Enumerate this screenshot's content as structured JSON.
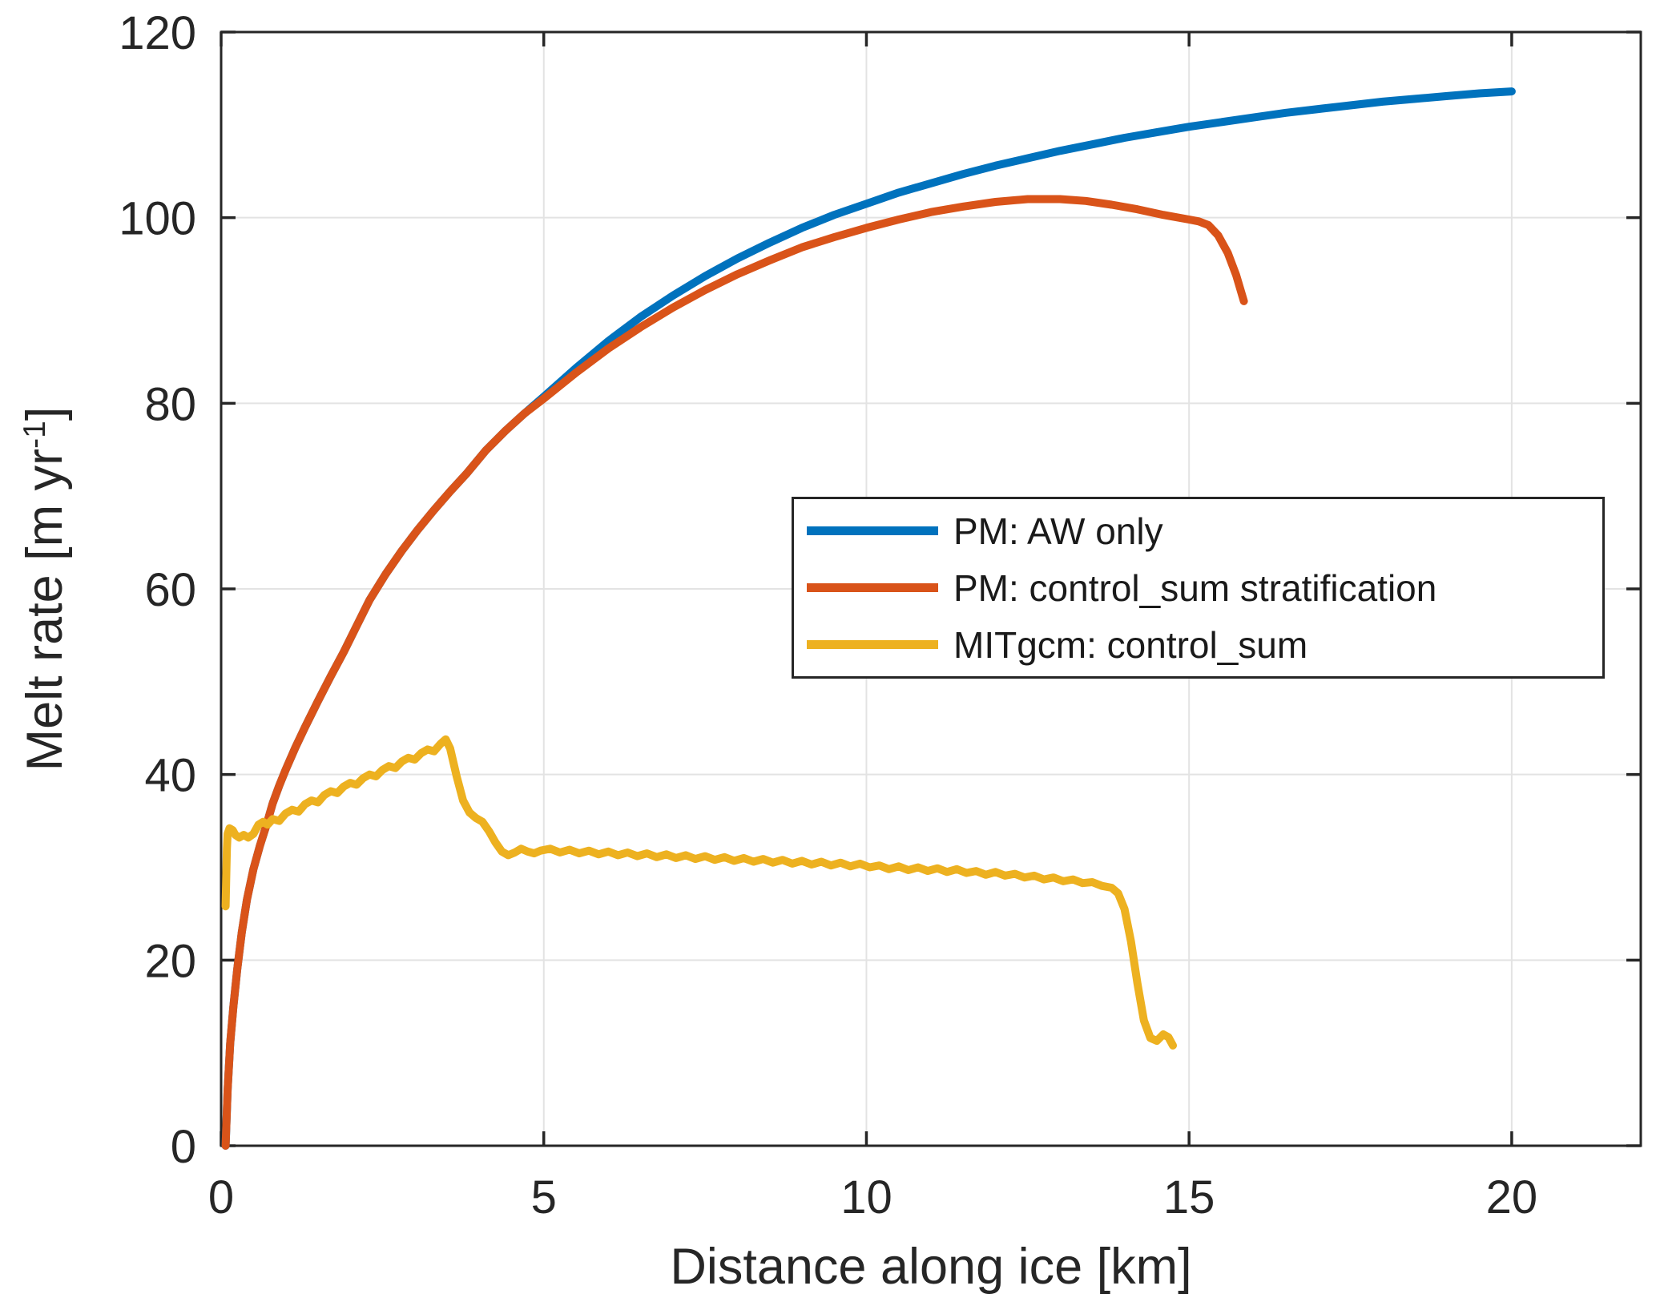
{
  "chart_data": {
    "type": "line",
    "title": "",
    "xlabel": "Distance along ice [km]",
    "ylabel": "Melt rate [m yr^-1]",
    "ylabel_parts": {
      "base": "Melt rate [m yr",
      "sup": "-1",
      "end": "]"
    },
    "xlim": [
      0,
      22
    ],
    "ylim": [
      0,
      120
    ],
    "xticks": [
      0,
      5,
      10,
      15,
      20
    ],
    "yticks": [
      0,
      20,
      40,
      60,
      80,
      100,
      120
    ],
    "grid": true,
    "legend_position": "middle-right",
    "colors": {
      "axis": "#262626",
      "grid": "#e3e3e3",
      "legend_border": "#262626",
      "legend_background": "#ffffff",
      "series_blue": "#0072BD",
      "series_orange": "#D95319",
      "series_yellow": "#EDB120"
    },
    "series": [
      {
        "name": "PM: AW only",
        "color": "#0072BD",
        "width": 10,
        "points": [
          [
            0.07,
            0
          ],
          [
            0.1,
            6
          ],
          [
            0.14,
            11
          ],
          [
            0.19,
            15
          ],
          [
            0.25,
            19
          ],
          [
            0.32,
            23
          ],
          [
            0.4,
            26.5
          ],
          [
            0.5,
            29.8
          ],
          [
            0.6,
            32.3
          ],
          [
            0.7,
            34.5
          ],
          [
            0.8,
            36.9
          ],
          [
            0.9,
            38.8
          ],
          [
            1.0,
            40.5
          ],
          [
            1.15,
            42.9
          ],
          [
            1.3,
            45.1
          ],
          [
            1.5,
            47.9
          ],
          [
            1.7,
            50.6
          ],
          [
            1.9,
            53.2
          ],
          [
            2.1,
            56.0
          ],
          [
            2.3,
            58.8
          ],
          [
            2.55,
            61.6
          ],
          [
            2.8,
            64.1
          ],
          [
            3.05,
            66.4
          ],
          [
            3.3,
            68.5
          ],
          [
            3.55,
            70.5
          ],
          [
            3.8,
            72.4
          ],
          [
            4.1,
            74.9
          ],
          [
            4.4,
            77.0
          ],
          [
            4.7,
            78.9
          ],
          [
            5.0,
            80.7
          ],
          [
            5.5,
            83.8
          ],
          [
            6.0,
            86.7
          ],
          [
            6.5,
            89.3
          ],
          [
            7.0,
            91.6
          ],
          [
            7.5,
            93.7
          ],
          [
            8.0,
            95.6
          ],
          [
            8.5,
            97.3
          ],
          [
            9.0,
            98.9
          ],
          [
            9.5,
            100.3
          ],
          [
            10.0,
            101.5
          ],
          [
            10.5,
            102.7
          ],
          [
            11.0,
            103.7
          ],
          [
            11.5,
            104.7
          ],
          [
            12.0,
            105.6
          ],
          [
            12.5,
            106.4
          ],
          [
            13.0,
            107.2
          ],
          [
            13.5,
            107.9
          ],
          [
            14.0,
            108.6
          ],
          [
            14.5,
            109.2
          ],
          [
            15.0,
            109.8
          ],
          [
            15.5,
            110.3
          ],
          [
            16.0,
            110.8
          ],
          [
            16.5,
            111.3
          ],
          [
            17.0,
            111.7
          ],
          [
            17.5,
            112.1
          ],
          [
            18.0,
            112.5
          ],
          [
            18.5,
            112.8
          ],
          [
            19.0,
            113.1
          ],
          [
            19.5,
            113.4
          ],
          [
            20.0,
            113.6
          ]
        ]
      },
      {
        "name": "PM: control_sum stratification",
        "color": "#D95319",
        "width": 10,
        "points": [
          [
            0.07,
            0
          ],
          [
            0.1,
            6
          ],
          [
            0.14,
            11
          ],
          [
            0.19,
            15
          ],
          [
            0.25,
            19
          ],
          [
            0.32,
            23
          ],
          [
            0.4,
            26.5
          ],
          [
            0.5,
            29.8
          ],
          [
            0.6,
            32.3
          ],
          [
            0.7,
            34.5
          ],
          [
            0.8,
            36.9
          ],
          [
            0.9,
            38.8
          ],
          [
            1.0,
            40.5
          ],
          [
            1.15,
            42.9
          ],
          [
            1.3,
            45.1
          ],
          [
            1.5,
            47.9
          ],
          [
            1.7,
            50.6
          ],
          [
            1.9,
            53.2
          ],
          [
            2.1,
            56.0
          ],
          [
            2.3,
            58.8
          ],
          [
            2.55,
            61.6
          ],
          [
            2.8,
            64.1
          ],
          [
            3.05,
            66.4
          ],
          [
            3.3,
            68.5
          ],
          [
            3.55,
            70.5
          ],
          [
            3.8,
            72.4
          ],
          [
            4.1,
            74.9
          ],
          [
            4.4,
            77.0
          ],
          [
            4.7,
            78.9
          ],
          [
            5.0,
            80.5
          ],
          [
            5.5,
            83.3
          ],
          [
            6.0,
            85.9
          ],
          [
            6.5,
            88.2
          ],
          [
            7.0,
            90.3
          ],
          [
            7.5,
            92.2
          ],
          [
            8.0,
            93.9
          ],
          [
            8.5,
            95.4
          ],
          [
            9.0,
            96.8
          ],
          [
            9.5,
            97.9
          ],
          [
            10.0,
            98.9
          ],
          [
            10.5,
            99.8
          ],
          [
            11.0,
            100.6
          ],
          [
            11.5,
            101.2
          ],
          [
            12.0,
            101.7
          ],
          [
            12.5,
            102.0
          ],
          [
            13.0,
            102.0
          ],
          [
            13.4,
            101.8
          ],
          [
            13.8,
            101.4
          ],
          [
            14.2,
            100.9
          ],
          [
            14.6,
            100.3
          ],
          [
            15.0,
            99.8
          ],
          [
            15.15,
            99.6
          ],
          [
            15.3,
            99.2
          ],
          [
            15.45,
            98.1
          ],
          [
            15.6,
            96.2
          ],
          [
            15.73,
            93.8
          ],
          [
            15.85,
            91.0
          ]
        ]
      },
      {
        "name": "MITgcm: control_sum",
        "color": "#EDB120",
        "width": 10,
        "points": [
          [
            0.07,
            25.8
          ],
          [
            0.08,
            29.0
          ],
          [
            0.09,
            32.0
          ],
          [
            0.1,
            33.6
          ],
          [
            0.13,
            34.2
          ],
          [
            0.18,
            34.0
          ],
          [
            0.22,
            33.5
          ],
          [
            0.28,
            33.2
          ],
          [
            0.35,
            33.5
          ],
          [
            0.42,
            33.2
          ],
          [
            0.5,
            33.6
          ],
          [
            0.58,
            34.6
          ],
          [
            0.65,
            34.9
          ],
          [
            0.72,
            34.6
          ],
          [
            0.8,
            35.2
          ],
          [
            0.9,
            35.0
          ],
          [
            1.0,
            35.8
          ],
          [
            1.1,
            36.2
          ],
          [
            1.2,
            36.0
          ],
          [
            1.3,
            36.8
          ],
          [
            1.4,
            37.2
          ],
          [
            1.5,
            37.0
          ],
          [
            1.6,
            37.8
          ],
          [
            1.7,
            38.2
          ],
          [
            1.8,
            38.0
          ],
          [
            1.9,
            38.7
          ],
          [
            2.0,
            39.1
          ],
          [
            2.1,
            38.9
          ],
          [
            2.2,
            39.6
          ],
          [
            2.3,
            40.0
          ],
          [
            2.4,
            39.8
          ],
          [
            2.5,
            40.5
          ],
          [
            2.6,
            40.9
          ],
          [
            2.7,
            40.7
          ],
          [
            2.8,
            41.4
          ],
          [
            2.9,
            41.8
          ],
          [
            3.0,
            41.6
          ],
          [
            3.1,
            42.3
          ],
          [
            3.2,
            42.7
          ],
          [
            3.3,
            42.5
          ],
          [
            3.4,
            43.3
          ],
          [
            3.48,
            43.8
          ],
          [
            3.55,
            42.8
          ],
          [
            3.65,
            39.8
          ],
          [
            3.75,
            37.2
          ],
          [
            3.85,
            35.9
          ],
          [
            3.95,
            35.3
          ],
          [
            4.05,
            34.9
          ],
          [
            4.15,
            33.9
          ],
          [
            4.25,
            32.7
          ],
          [
            4.35,
            31.7
          ],
          [
            4.45,
            31.3
          ],
          [
            4.55,
            31.6
          ],
          [
            4.65,
            32.0
          ],
          [
            4.75,
            31.7
          ],
          [
            4.85,
            31.5
          ],
          [
            4.95,
            31.8
          ],
          [
            5.1,
            32.0
          ],
          [
            5.25,
            31.6
          ],
          [
            5.4,
            31.9
          ],
          [
            5.55,
            31.5
          ],
          [
            5.7,
            31.8
          ],
          [
            5.85,
            31.4
          ],
          [
            6.0,
            31.7
          ],
          [
            6.15,
            31.3
          ],
          [
            6.3,
            31.6
          ],
          [
            6.45,
            31.2
          ],
          [
            6.6,
            31.5
          ],
          [
            6.75,
            31.1
          ],
          [
            6.9,
            31.4
          ],
          [
            7.05,
            31.0
          ],
          [
            7.2,
            31.3
          ],
          [
            7.35,
            30.9
          ],
          [
            7.5,
            31.2
          ],
          [
            7.65,
            30.8
          ],
          [
            7.8,
            31.1
          ],
          [
            7.95,
            30.7
          ],
          [
            8.1,
            31.0
          ],
          [
            8.25,
            30.6
          ],
          [
            8.4,
            30.9
          ],
          [
            8.55,
            30.5
          ],
          [
            8.7,
            30.8
          ],
          [
            8.85,
            30.4
          ],
          [
            9.0,
            30.7
          ],
          [
            9.15,
            30.3
          ],
          [
            9.3,
            30.6
          ],
          [
            9.45,
            30.2
          ],
          [
            9.6,
            30.5
          ],
          [
            9.75,
            30.1
          ],
          [
            9.9,
            30.4
          ],
          [
            10.05,
            30.0
          ],
          [
            10.2,
            30.2
          ],
          [
            10.35,
            29.8
          ],
          [
            10.5,
            30.1
          ],
          [
            10.65,
            29.7
          ],
          [
            10.8,
            30.0
          ],
          [
            10.95,
            29.6
          ],
          [
            11.1,
            29.9
          ],
          [
            11.25,
            29.5
          ],
          [
            11.4,
            29.8
          ],
          [
            11.55,
            29.4
          ],
          [
            11.7,
            29.6
          ],
          [
            11.85,
            29.2
          ],
          [
            12.0,
            29.5
          ],
          [
            12.15,
            29.1
          ],
          [
            12.3,
            29.3
          ],
          [
            12.45,
            28.9
          ],
          [
            12.6,
            29.1
          ],
          [
            12.75,
            28.7
          ],
          [
            12.9,
            28.9
          ],
          [
            13.05,
            28.5
          ],
          [
            13.2,
            28.7
          ],
          [
            13.35,
            28.3
          ],
          [
            13.5,
            28.4
          ],
          [
            13.65,
            28.0
          ],
          [
            13.8,
            27.8
          ],
          [
            13.9,
            27.2
          ],
          [
            14.0,
            25.5
          ],
          [
            14.1,
            22.0
          ],
          [
            14.2,
            17.5
          ],
          [
            14.3,
            13.5
          ],
          [
            14.4,
            11.6
          ],
          [
            14.5,
            11.3
          ],
          [
            14.6,
            12.0
          ],
          [
            14.68,
            11.7
          ],
          [
            14.75,
            10.8
          ]
        ]
      }
    ]
  }
}
